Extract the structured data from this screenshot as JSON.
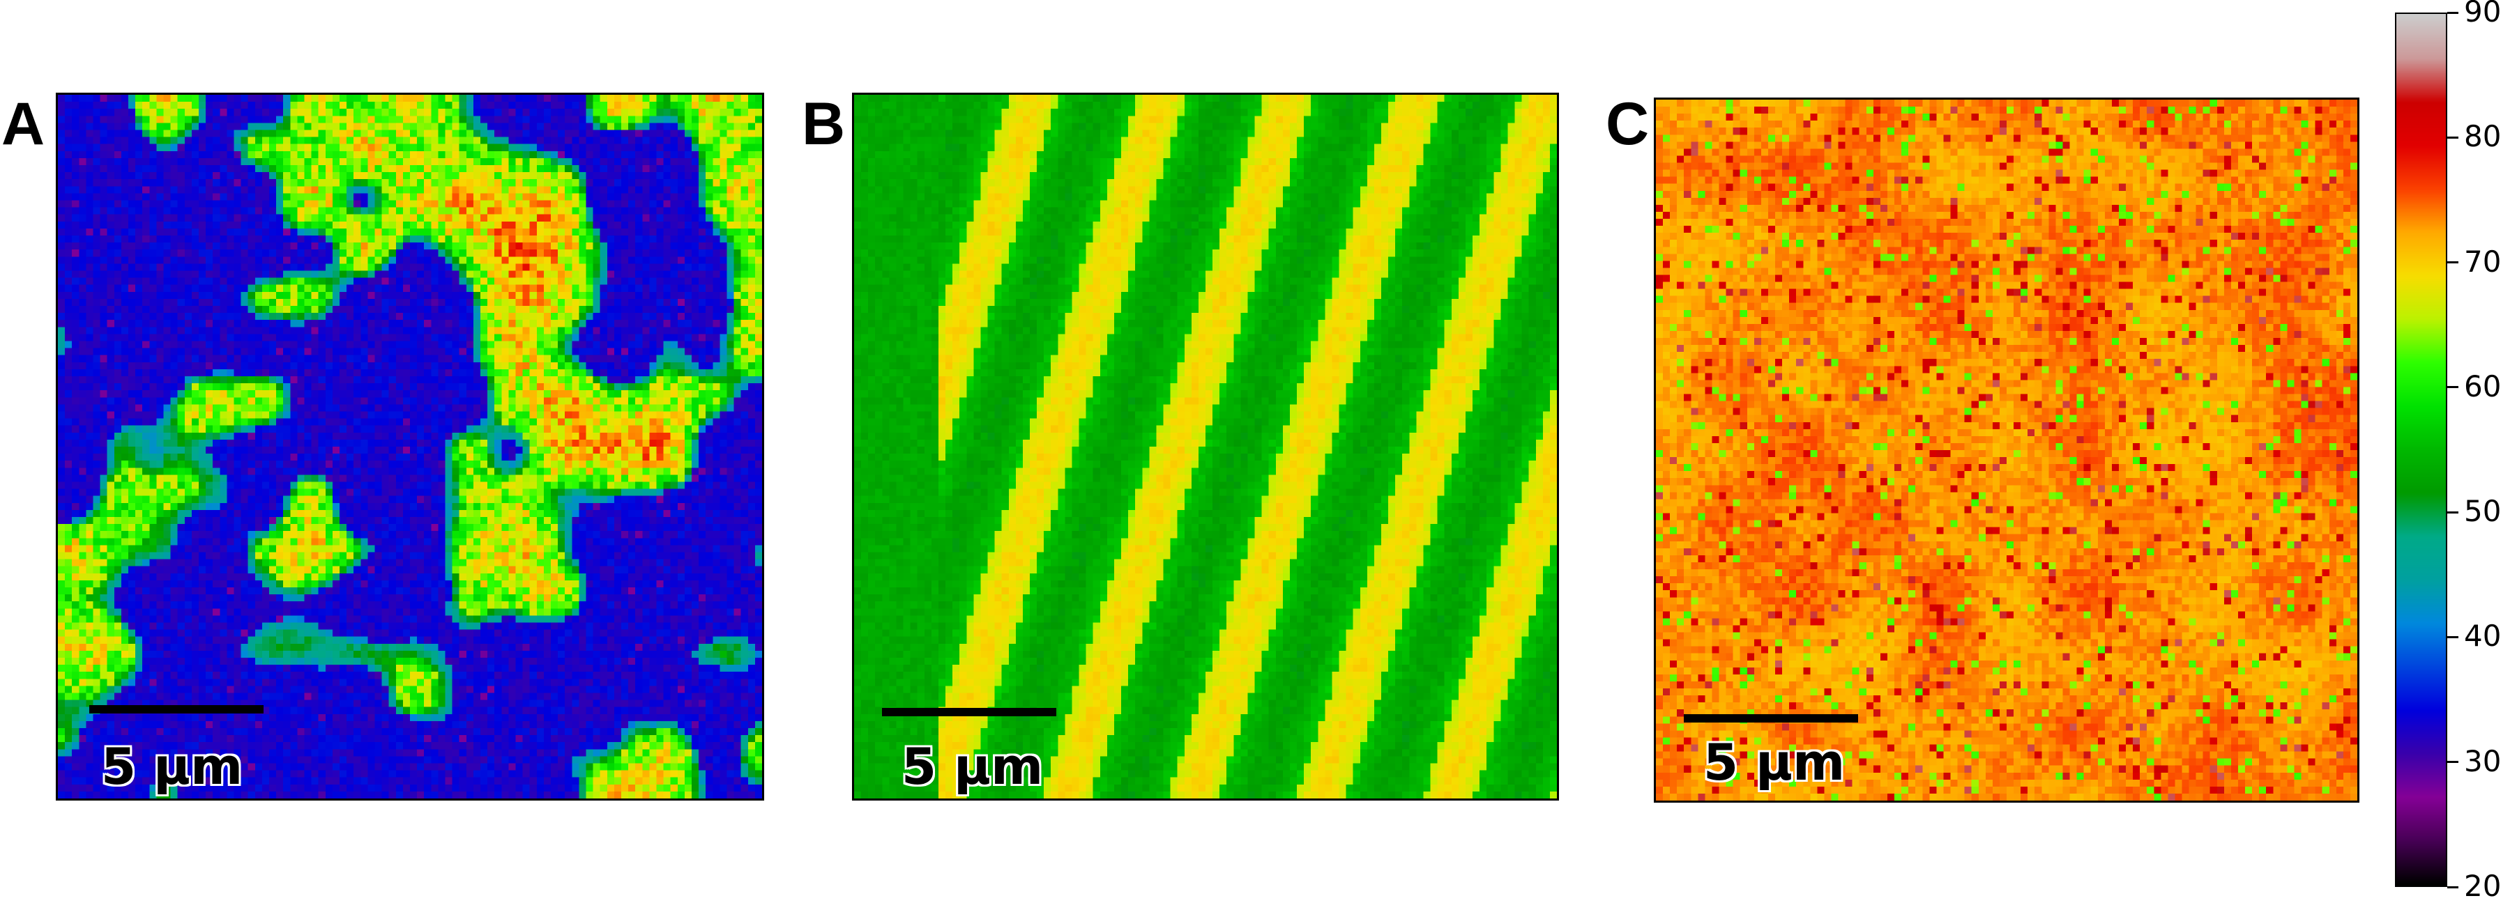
{
  "chart_data": {
    "type": "heatmap",
    "panels": [
      {
        "label": "A",
        "scale_bar_text": "5 µm",
        "pattern": "blue background (~30) with irregular green/yellow domains (~55-70)",
        "value_range": [
          28,
          78
        ]
      },
      {
        "label": "B",
        "scale_bar_text": "5 µm",
        "pattern": "diagonal alternating green (~52) and yellow (~66) stripes",
        "value_range": [
          50,
          72
        ]
      },
      {
        "label": "C",
        "scale_bar_text": "5 µm",
        "pattern": "mostly orange-yellow (~72) with scattered red (~82) speckles",
        "value_range": [
          62,
          86
        ]
      }
    ],
    "colorbar": {
      "min": 20,
      "max": 90,
      "ticks": [
        20,
        30,
        40,
        50,
        60,
        70,
        80,
        90
      ],
      "colormap": "nipy_spectral"
    }
  }
}
